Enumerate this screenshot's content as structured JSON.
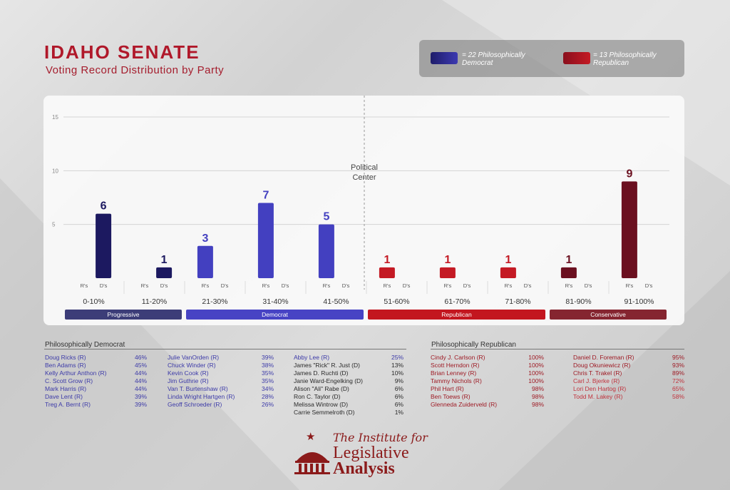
{
  "header": {
    "title": "IDAHO SENATE",
    "subtitle": "Voting Record Distribution by Party"
  },
  "legend": {
    "democrat_text": "= 22 Philosophically Democrat",
    "republican_text": "= 13 Philosophically Republican",
    "democrat_color": "#2c2a8c",
    "republican_color": "#b01322"
  },
  "chart_data": {
    "type": "bar",
    "ylim": [
      0,
      15
    ],
    "yticks": [
      5,
      10,
      15
    ],
    "categories": [
      "0-10%",
      "11-20%",
      "21-30%",
      "31-40%",
      "41-50%",
      "51-60%",
      "61-70%",
      "71-80%",
      "81-90%",
      "91-100%"
    ],
    "sublabels": [
      "R's",
      "D's"
    ],
    "series": [
      {
        "name": "R's",
        "values": [
          0,
          0,
          3,
          7,
          5,
          1,
          1,
          1,
          1,
          9
        ]
      },
      {
        "name": "D's",
        "values": [
          6,
          1,
          0,
          0,
          0,
          0,
          0,
          0,
          0,
          0
        ]
      }
    ],
    "bar_colors": [
      "#1c1960",
      "#1c1960",
      "#4340c0",
      "#4340c0",
      "#4340c0",
      "#c41a24",
      "#c41a24",
      "#c41a24",
      "#6b1020",
      "#6b1020"
    ],
    "center_label": [
      "Political",
      "Center"
    ],
    "groups": [
      {
        "label": "Progressive",
        "color": "#3c3d78"
      },
      {
        "label": "Democrat",
        "color": "#4743c4"
      },
      {
        "label": "Republican",
        "color": "#c3161f"
      },
      {
        "label": "Conservative",
        "color": "#852530"
      }
    ]
  },
  "dem_list": {
    "title": "Philosophically Democrat",
    "columns": [
      [
        {
          "name": "Doug Ricks (R)",
          "pct": "46%"
        },
        {
          "name": "Ben Adams (R)",
          "pct": "45%"
        },
        {
          "name": "Kelly Arthur Anthon (R)",
          "pct": "44%"
        },
        {
          "name": "C. Scott Grow (R)",
          "pct": "44%"
        },
        {
          "name": "Mark Harris (R)",
          "pct": "44%"
        },
        {
          "name": "Dave Lent (R)",
          "pct": "39%"
        },
        {
          "name": "Treg A. Bernt (R)",
          "pct": "39%"
        }
      ],
      [
        {
          "name": "Julie VanOrden (R)",
          "pct": "39%"
        },
        {
          "name": "Chuck Winder (R)",
          "pct": "38%"
        },
        {
          "name": "Kevin Cook (R)",
          "pct": "35%"
        },
        {
          "name": "Jim Guthrie (R)",
          "pct": "35%"
        },
        {
          "name": "Van T. Burtenshaw (R)",
          "pct": "34%"
        },
        {
          "name": "Linda Wright Hartgen (R)",
          "pct": "28%"
        },
        {
          "name": "Geoff Schroeder (R)",
          "pct": "26%"
        }
      ],
      [
        {
          "name": "Abby Lee (R)",
          "pct": "25%"
        },
        {
          "name": "James \"Rick\" R. Just (D)",
          "pct": "13%"
        },
        {
          "name": "James D. Ruchti (D)",
          "pct": "10%"
        },
        {
          "name": "Janie Ward-Engelking (D)",
          "pct": "9%"
        },
        {
          "name": "Alison \"Ali\" Rabe (D)",
          "pct": "6%"
        },
        {
          "name": "Ron C. Taylor (D)",
          "pct": "6%"
        },
        {
          "name": "Melissa Wintrow (D)",
          "pct": "6%"
        },
        {
          "name": "Carrie Semmelroth (D)",
          "pct": "1%"
        }
      ]
    ]
  },
  "rep_list": {
    "title": "Philosophically Republican",
    "columns": [
      [
        {
          "name": "Cindy J. Carlson (R)",
          "pct": "100%"
        },
        {
          "name": "Scott Herndon (R)",
          "pct": "100%"
        },
        {
          "name": "Brian Lenney (R)",
          "pct": "100%"
        },
        {
          "name": "Tammy Nichols (R)",
          "pct": "100%"
        },
        {
          "name": "Phil Hart (R)",
          "pct": "98%"
        },
        {
          "name": "Ben Toews (R)",
          "pct": "98%"
        },
        {
          "name": "Glenneda Zuiderveld (R)",
          "pct": "98%"
        }
      ],
      [
        {
          "name": "Daniel D. Foreman (R)",
          "pct": "95%"
        },
        {
          "name": "Doug Okuniewicz (R)",
          "pct": "93%"
        },
        {
          "name": "Chris T. Trakel (R)",
          "pct": "89%"
        },
        {
          "name": "Carl J. Bjerke (R)",
          "pct": "72%"
        },
        {
          "name": "Lori Den Hartog (R)",
          "pct": "65%"
        },
        {
          "name": "Todd M. Lakey (R)",
          "pct": "58%"
        }
      ]
    ]
  },
  "logo": {
    "line1": "The Institute for",
    "line2": "Legislative",
    "line3": "Analysis"
  }
}
